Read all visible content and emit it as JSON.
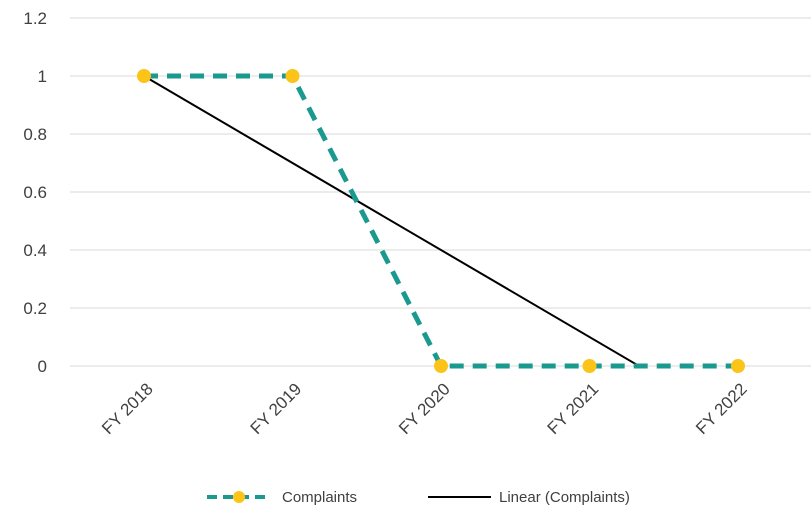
{
  "chart_data": {
    "type": "line",
    "categories": [
      "FY 2018",
      "FY 2019",
      "FY 2020",
      "FY 2021",
      "FY 2022"
    ],
    "series": [
      {
        "name": "Complaints",
        "values": [
          1,
          1,
          0,
          0,
          0
        ],
        "line_color": "#1a9a8f",
        "marker_color": "#fcc419",
        "line_style": "dashed"
      }
    ],
    "trendlines": [
      {
        "name": "Linear (Complaints)",
        "type": "linear",
        "of_series": "Complaints",
        "start": {
          "x": "FY 2018",
          "y": 1
        },
        "end": {
          "x_between": [
            "FY 2021",
            "FY 2022"
          ],
          "y": 0
        },
        "color": "#000000"
      }
    ],
    "y_ticks": [
      0,
      0.2,
      0.4,
      0.6,
      0.8,
      1,
      1.2
    ],
    "y_tick_labels": [
      "0",
      "0.2",
      "0.4",
      "0.6",
      "0.8",
      "1",
      "1.2"
    ],
    "ylim": [
      0,
      1.2
    ],
    "grid": true,
    "legend_position": "bottom",
    "legend": [
      "Complaints",
      "Linear (Complaints)"
    ]
  }
}
